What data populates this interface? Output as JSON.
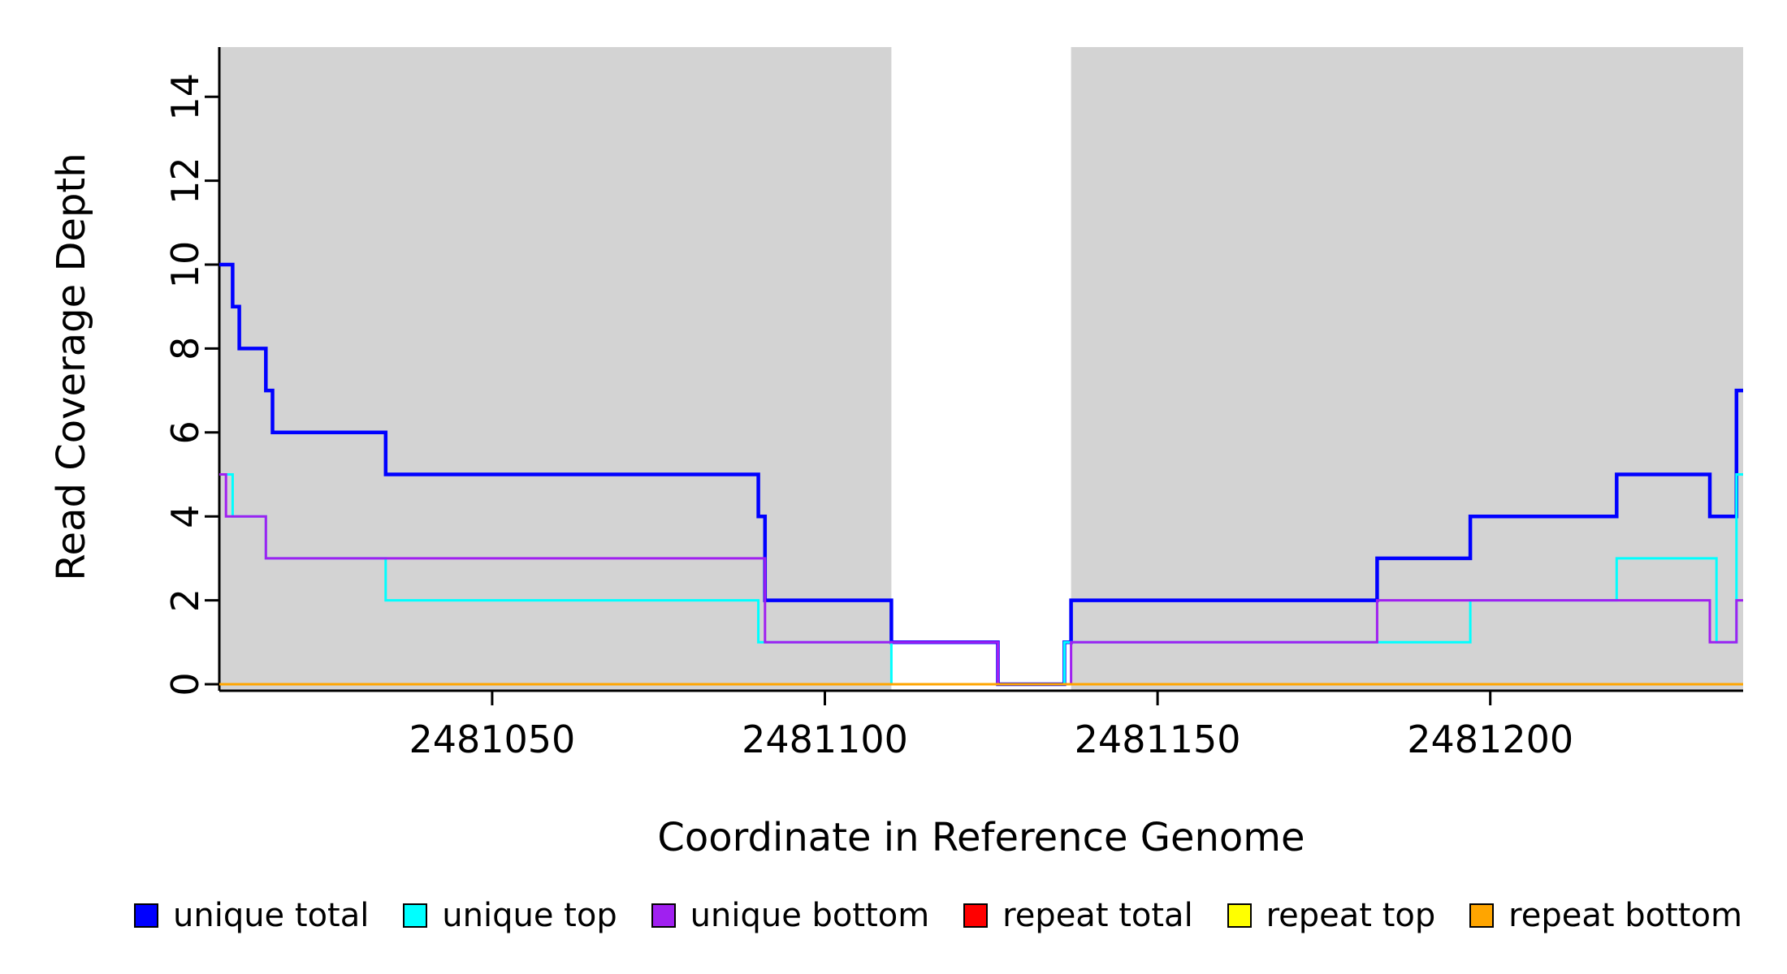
{
  "chart_data": {
    "type": "line",
    "subtype": "step",
    "title": "",
    "xlabel": "Coordinate in Reference Genome",
    "ylabel": "Read Coverage Depth",
    "xlim": [
      2481009,
      2481238
    ],
    "ylim": [
      0,
      15
    ],
    "x_ticks": [
      2481050,
      2481100,
      2481150,
      2481200
    ],
    "y_ticks": [
      0,
      2,
      4,
      6,
      8,
      10,
      12,
      14
    ],
    "grid": false,
    "legend_position": "bottom",
    "band_color": "#d3d3d3",
    "background_bands": [
      {
        "x0": 2481009,
        "x1": 2481110,
        "color": "#d3d3d3"
      },
      {
        "x0": 2481137,
        "x1": 2481238,
        "color": "#d3d3d3"
      }
    ],
    "series": [
      {
        "name": "unique total",
        "color": "#0000ff",
        "points": [
          [
            2481009,
            10
          ],
          [
            2481011,
            9
          ],
          [
            2481012,
            8
          ],
          [
            2481016,
            7
          ],
          [
            2481017,
            6
          ],
          [
            2481034,
            5
          ],
          [
            2481090,
            4
          ],
          [
            2481091,
            2
          ],
          [
            2481110,
            1
          ],
          [
            2481126,
            0
          ],
          [
            2481136,
            1
          ],
          [
            2481137,
            2
          ],
          [
            2481183,
            3
          ],
          [
            2481197,
            4
          ],
          [
            2481219,
            5
          ],
          [
            2481233,
            4
          ],
          [
            2481237,
            7
          ]
        ],
        "x_end": 2481238
      },
      {
        "name": "unique top",
        "color": "#00ffff",
        "points": [
          [
            2481009,
            5
          ],
          [
            2481011,
            4
          ],
          [
            2481016,
            3
          ],
          [
            2481034,
            2
          ],
          [
            2481090,
            1
          ],
          [
            2481110,
            0
          ],
          [
            2481136,
            1
          ],
          [
            2481197,
            2
          ],
          [
            2481219,
            3
          ],
          [
            2481234,
            1
          ],
          [
            2481237,
            5
          ]
        ],
        "x_end": 2481238
      },
      {
        "name": "unique bottom",
        "color": "#a020f0",
        "points": [
          [
            2481009,
            5
          ],
          [
            2481010,
            4
          ],
          [
            2481016,
            3
          ],
          [
            2481091,
            1
          ],
          [
            2481126,
            0
          ],
          [
            2481137,
            1
          ],
          [
            2481183,
            2
          ],
          [
            2481233,
            1
          ],
          [
            2481237,
            2
          ]
        ],
        "x_end": 2481238
      },
      {
        "name": "repeat total",
        "color": "#ff0000",
        "points": [
          [
            2481009,
            0
          ]
        ],
        "x_end": 2481238
      },
      {
        "name": "repeat top",
        "color": "#ffff00",
        "points": [
          [
            2481009,
            0
          ]
        ],
        "x_end": 2481238
      },
      {
        "name": "repeat bottom",
        "color": "#ffa500",
        "points": [
          [
            2481009,
            0
          ]
        ],
        "x_end": 2481238
      }
    ]
  }
}
